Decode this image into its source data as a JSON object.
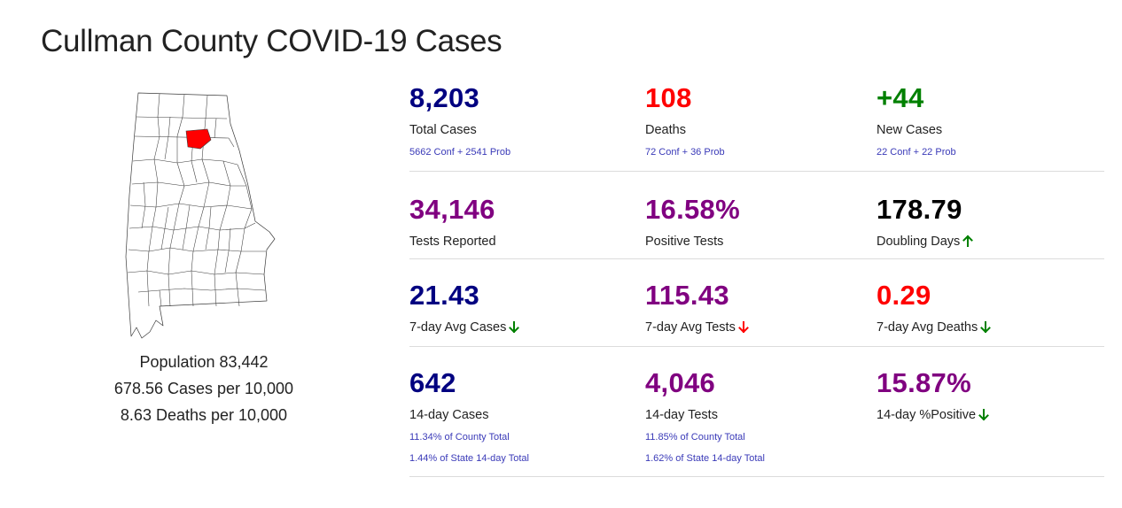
{
  "page_title": "Cullman County COVID-19 Cases",
  "map": {
    "icon": "alabama-county-map-icon",
    "highlight_color": "#ff0000"
  },
  "county_stats": {
    "population": "Population 83,442",
    "cases_per_10k": "678.56 Cases per 10,000",
    "deaths_per_10k": "8.63 Deaths per 10,000"
  },
  "colors": {
    "navy": "#000080",
    "red": "#ff0000",
    "green": "#008000",
    "purple": "#800080",
    "sub_text": "#3a3ab8"
  },
  "stats": {
    "total_cases": {
      "value": "8,203",
      "label": "Total Cases",
      "sub": [
        "5662 Conf + 2541 Prob"
      ]
    },
    "deaths": {
      "value": "108",
      "label": "Deaths",
      "sub": [
        "72 Conf + 36 Prob"
      ]
    },
    "new_cases": {
      "value": "+44",
      "label": "New Cases",
      "sub": [
        "22 Conf + 22 Prob"
      ]
    },
    "tests_reported": {
      "value": "34,146",
      "label": "Tests Reported"
    },
    "positive_tests": {
      "value": "16.58%",
      "label": "Positive Tests"
    },
    "doubling_days": {
      "value": "178.79",
      "label": "Doubling Days",
      "trend": "up",
      "trend_color": "#008000"
    },
    "avg7_cases": {
      "value": "21.43",
      "label": "7-day Avg Cases",
      "trend": "down",
      "trend_color": "#008000"
    },
    "avg7_tests": {
      "value": "115.43",
      "label": "7-day Avg Tests",
      "trend": "down",
      "trend_color": "#ff0000"
    },
    "avg7_deaths": {
      "value": "0.29",
      "label": "7-day Avg Deaths",
      "trend": "down",
      "trend_color": "#008000"
    },
    "cases_14day": {
      "value": "642",
      "label": "14-day Cases",
      "sub": [
        "11.34% of County Total",
        "1.44% of State 14-day Total"
      ]
    },
    "tests_14day": {
      "value": "4,046",
      "label": "14-day Tests",
      "sub": [
        "11.85% of County Total",
        "1.62% of State 14-day Total"
      ]
    },
    "positive_14day": {
      "value": "15.87%",
      "label": "14-day %Positive",
      "trend": "down",
      "trend_color": "#008000"
    }
  }
}
